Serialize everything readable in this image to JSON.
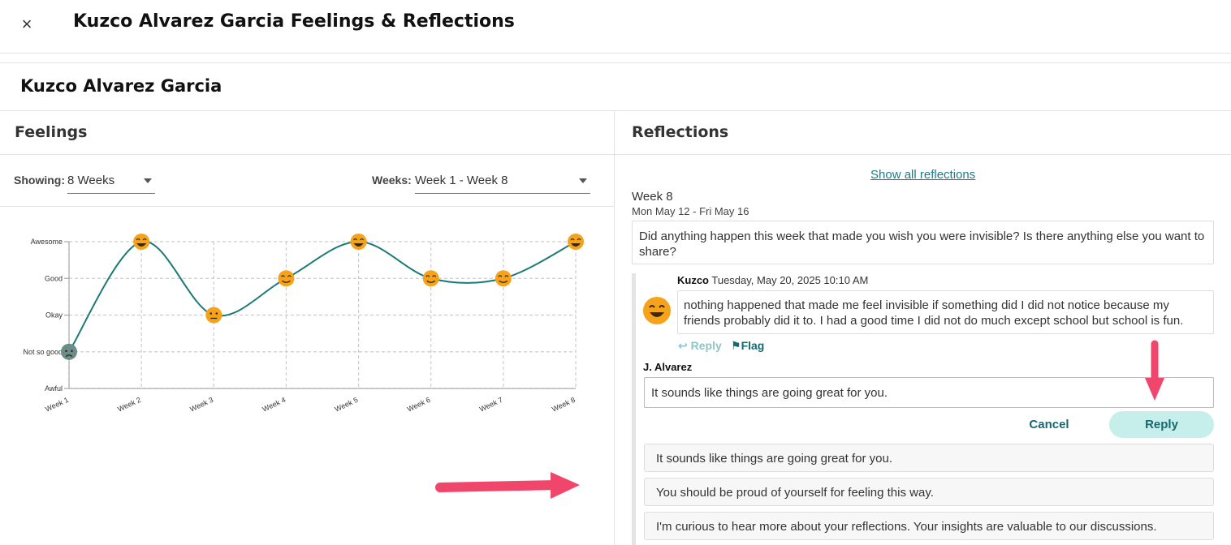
{
  "header": {
    "title": "Kuzco Alvarez Garcia Feelings & Reflections",
    "close_icon": "×"
  },
  "student": {
    "name": "Kuzco Alvarez Garcia"
  },
  "feelings": {
    "title": "Feelings",
    "showing_label": "Showing:",
    "showing_value": "8 Weeks",
    "weeks_label": "Weeks:",
    "weeks_value": "Week 1 - Week 8"
  },
  "chart_data": {
    "type": "line",
    "categories": [
      "Week 1",
      "Week 2",
      "Week 3",
      "Week 4",
      "Week 5",
      "Week 6",
      "Week 7",
      "Week 8"
    ],
    "y_levels": [
      "Awful",
      "Not so good",
      "Okay",
      "Good",
      "Awesome"
    ],
    "values": [
      1,
      4,
      2,
      3,
      4,
      3,
      3,
      4
    ],
    "ylim": [
      0,
      4
    ],
    "grid": true,
    "line_color": "#1b7a78",
    "marker_color": "#f7a21b"
  },
  "reflections": {
    "title": "Reflections",
    "show_all": "Show all reflections",
    "week_title": "Week 8",
    "week_range": "Mon May 12 - Fri May 16",
    "prompt": "Did anything happen this week that made you wish you were invisible? Is there anything else you want to share?",
    "student_author": "Kuzco",
    "student_time": "Tuesday, May 20, 2025 10:10 AM",
    "student_reply": "nothing happened that made me feel invisible if something did I did not notice because my friends probably did it to. I had a good time I did not do much except school but school is fun.",
    "reply_link": "Reply",
    "flag_link": "Flag",
    "teacher_name": "J. Alvarez",
    "reply_input_value": "It sounds like things are going great for you.",
    "cancel_label": "Cancel",
    "reply_label": "Reply",
    "suggestions": [
      "It sounds like things are going great for you.",
      "You should be proud of yourself for feeling this way.",
      "I'm curious to hear more about your reflections. Your insights are valuable to our discussions."
    ]
  },
  "colors": {
    "accent": "#146a70",
    "annotation_arrow": "#f0466c"
  }
}
